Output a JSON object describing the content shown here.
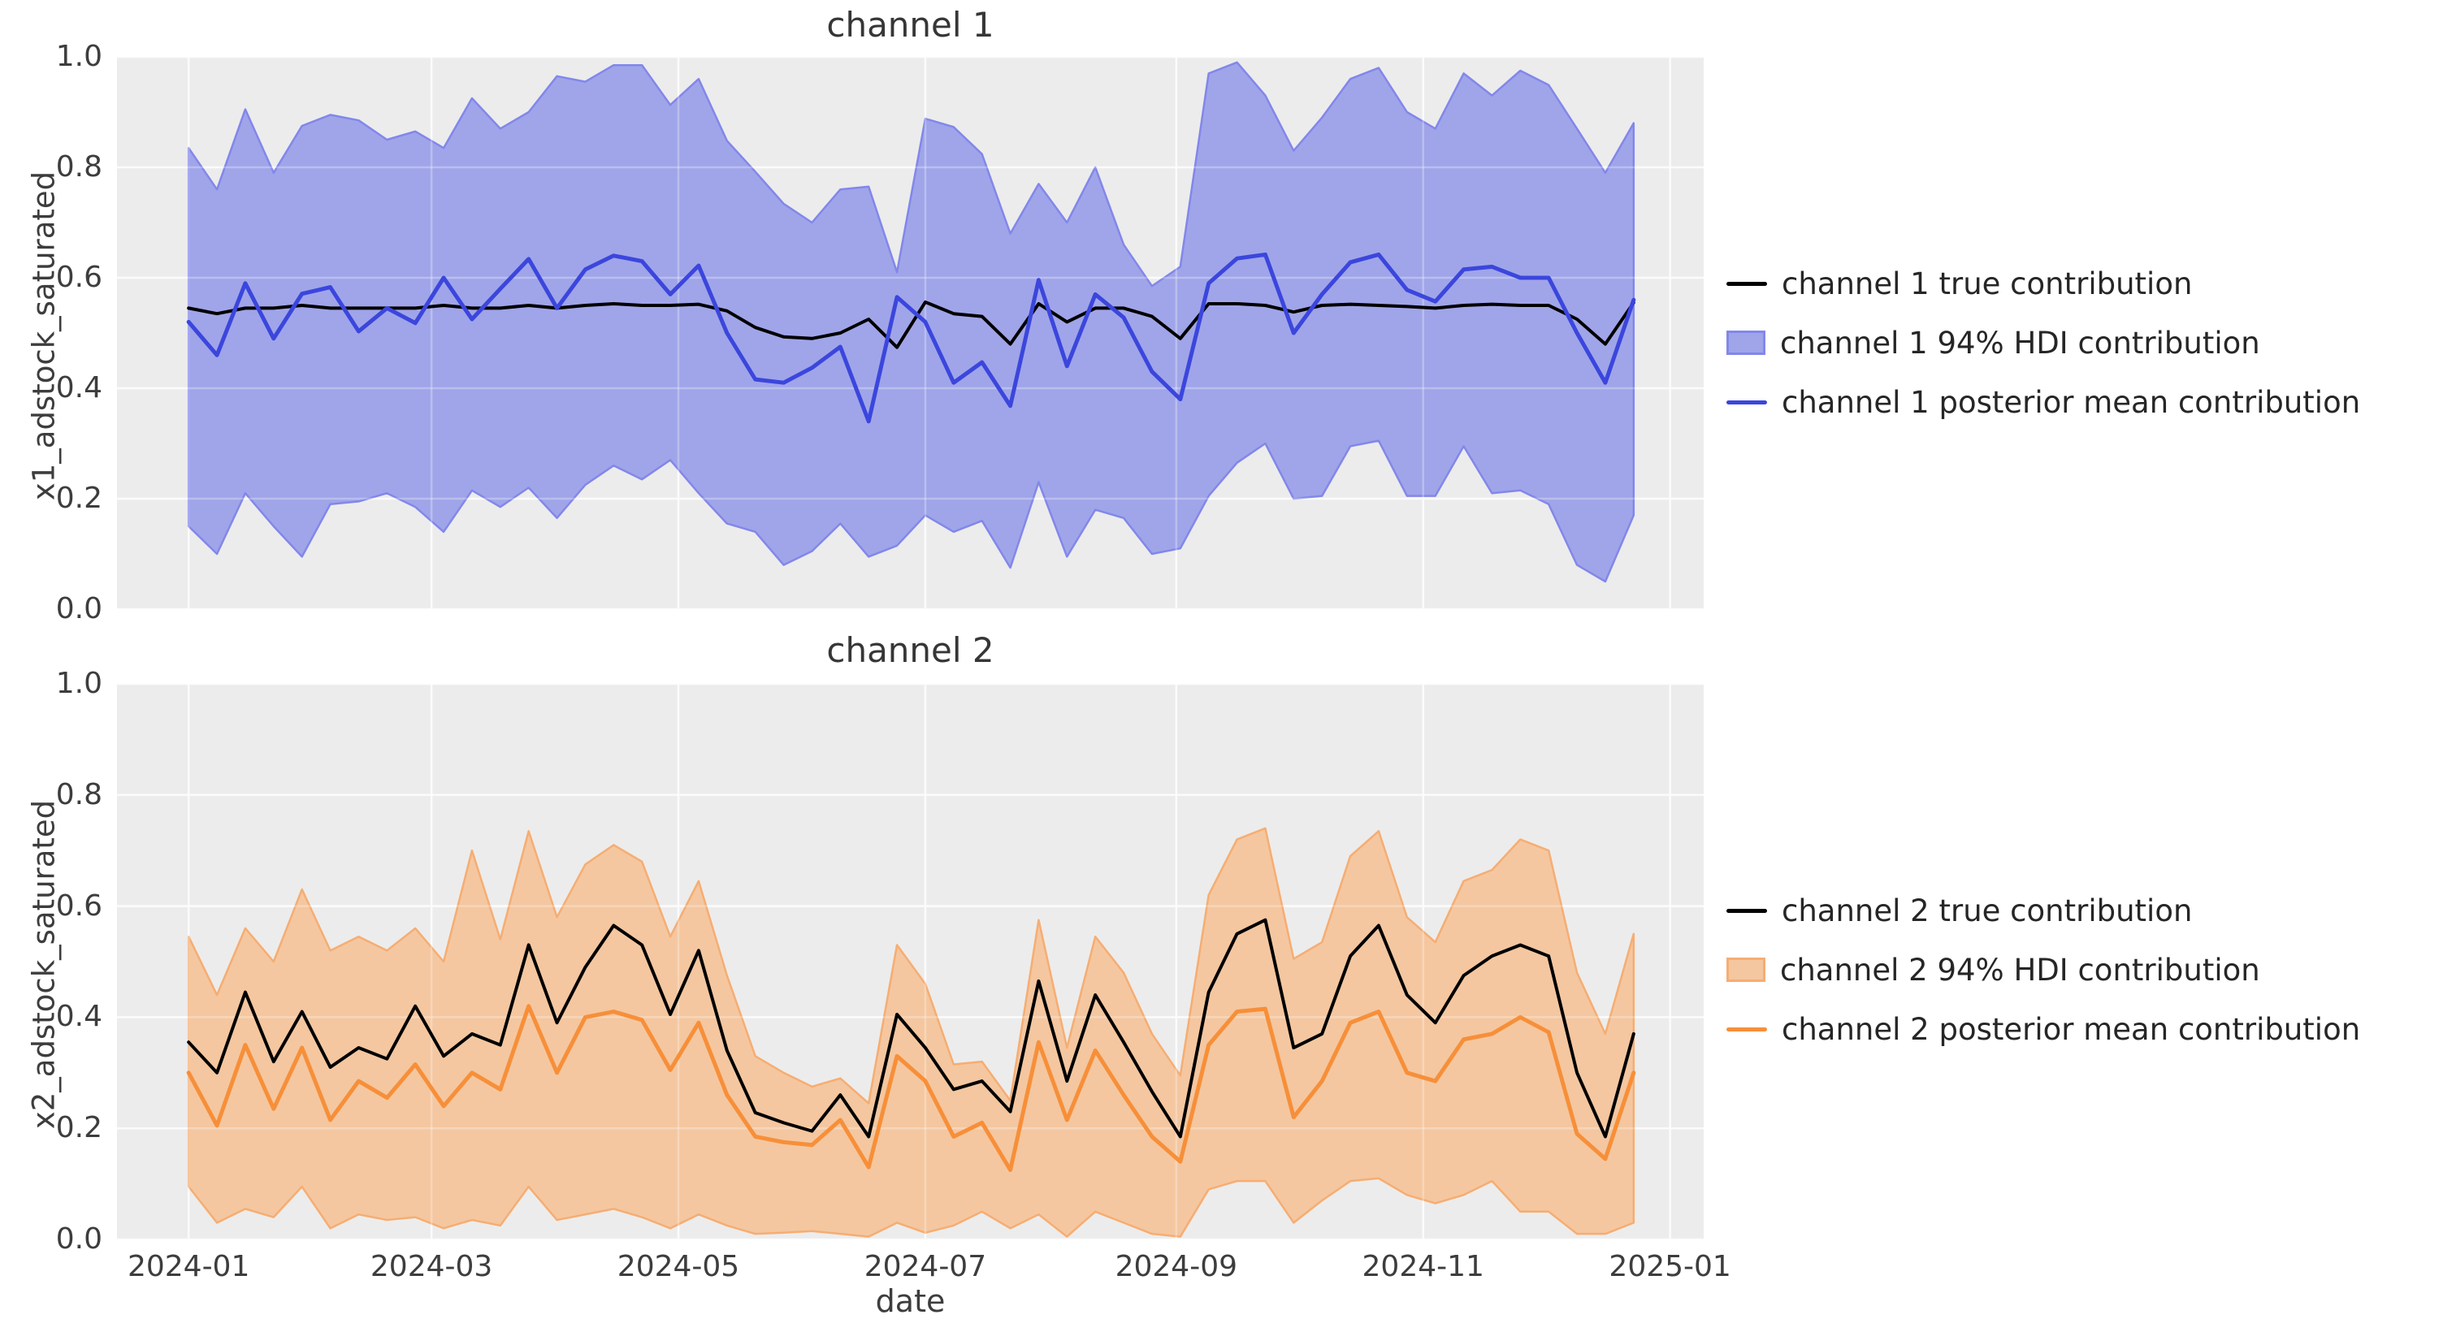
{
  "figure": {
    "background": "#ffffff",
    "panel_background": "#ececec",
    "grid_color": "#fafafa",
    "tick_text_color": "#3d3d3d",
    "title_text_color": "#363636"
  },
  "chart_data": [
    {
      "type": "line",
      "title": "channel 1",
      "ylabel": "x1_adstock_saturated",
      "xlabel": "",
      "ylim": [
        0.0,
        1.0
      ],
      "xlim_days": [
        -17.7,
        374.3
      ],
      "grid": true,
      "legend_position": "center right outside",
      "yticks": [
        {
          "label": "0.0",
          "value": 0.0
        },
        {
          "label": "0.2",
          "value": 0.2
        },
        {
          "label": "0.4",
          "value": 0.4
        },
        {
          "label": "0.6",
          "value": 0.6
        },
        {
          "label": "0.8",
          "value": 0.8
        },
        {
          "label": "1.0",
          "value": 1.0
        }
      ],
      "xticks": [
        {
          "label": "2024-01",
          "day": 0
        },
        {
          "label": "2024-03",
          "day": 60
        },
        {
          "label": "2024-05",
          "day": 121
        },
        {
          "label": "2024-07",
          "day": 182
        },
        {
          "label": "2024-09",
          "day": 244
        },
        {
          "label": "2024-11",
          "day": 305
        },
        {
          "label": "2025-01",
          "day": 366
        }
      ],
      "x_dates": [
        "2024-01-01",
        "2024-01-08",
        "2024-01-15",
        "2024-01-22",
        "2024-01-29",
        "2024-02-05",
        "2024-02-12",
        "2024-02-19",
        "2024-02-26",
        "2024-03-04",
        "2024-03-11",
        "2024-03-18",
        "2024-03-25",
        "2024-04-01",
        "2024-04-08",
        "2024-04-15",
        "2024-04-22",
        "2024-04-29",
        "2024-05-06",
        "2024-05-13",
        "2024-05-20",
        "2024-05-27",
        "2024-06-03",
        "2024-06-10",
        "2024-06-17",
        "2024-06-24",
        "2024-07-01",
        "2024-07-08",
        "2024-07-15",
        "2024-07-22",
        "2024-07-29",
        "2024-08-05",
        "2024-08-12",
        "2024-08-19",
        "2024-08-26",
        "2024-09-02",
        "2024-09-09",
        "2024-09-16",
        "2024-09-23",
        "2024-09-30",
        "2024-10-07",
        "2024-10-14",
        "2024-10-21",
        "2024-10-28",
        "2024-11-04",
        "2024-11-11",
        "2024-11-18",
        "2024-11-25",
        "2024-12-02",
        "2024-12-09",
        "2024-12-16",
        "2024-12-23"
      ],
      "series": [
        {
          "name": "channel 1 true contribution",
          "kind": "line",
          "color": "#000000",
          "width": 4,
          "values": [
            0.545,
            0.535,
            0.545,
            0.545,
            0.55,
            0.545,
            0.545,
            0.545,
            0.545,
            0.55,
            0.545,
            0.545,
            0.55,
            0.545,
            0.55,
            0.553,
            0.55,
            0.55,
            0.552,
            0.54,
            0.51,
            0.493,
            0.49,
            0.5,
            0.525,
            0.474,
            0.556,
            0.535,
            0.53,
            0.48,
            0.553,
            0.52,
            0.545,
            0.545,
            0.53,
            0.49,
            0.553,
            0.553,
            0.55,
            0.538,
            0.55,
            0.552,
            0.55,
            0.548,
            0.545,
            0.55,
            0.552,
            0.55,
            0.55,
            0.525,
            0.48,
            0.555
          ]
        },
        {
          "name": "channel 1 94% HDI contribution",
          "kind": "band",
          "fill": "#a0a5e9",
          "edge": "#8287ea",
          "upper": [
            0.835,
            0.76,
            0.905,
            0.79,
            0.875,
            0.895,
            0.885,
            0.85,
            0.865,
            0.835,
            0.925,
            0.87,
            0.9,
            0.965,
            0.955,
            0.985,
            0.985,
            0.913,
            0.96,
            0.848,
            0.792,
            0.734,
            0.7,
            0.76,
            0.765,
            0.61,
            0.888,
            0.873,
            0.824,
            0.68,
            0.77,
            0.7,
            0.8,
            0.66,
            0.585,
            0.62,
            0.97,
            0.99,
            0.93,
            0.83,
            0.89,
            0.96,
            0.98,
            0.9,
            0.87,
            0.97,
            0.93,
            0.975,
            0.949,
            0.87,
            0.79,
            0.88
          ],
          "lower": [
            0.15,
            0.1,
            0.21,
            0.15,
            0.095,
            0.19,
            0.195,
            0.21,
            0.185,
            0.14,
            0.215,
            0.185,
            0.22,
            0.165,
            0.225,
            0.26,
            0.235,
            0.27,
            0.21,
            0.155,
            0.14,
            0.08,
            0.105,
            0.155,
            0.095,
            0.115,
            0.17,
            0.14,
            0.16,
            0.075,
            0.23,
            0.095,
            0.18,
            0.165,
            0.1,
            0.11,
            0.205,
            0.265,
            0.3,
            0.2,
            0.205,
            0.295,
            0.305,
            0.205,
            0.205,
            0.295,
            0.21,
            0.215,
            0.19,
            0.08,
            0.05,
            0.17
          ]
        },
        {
          "name": "channel 1 posterior mean contribution",
          "kind": "line",
          "color": "#3b46dd",
          "width": 5,
          "values": [
            0.52,
            0.46,
            0.59,
            0.49,
            0.571,
            0.583,
            0.503,
            0.545,
            0.518,
            0.6,
            0.525,
            0.58,
            0.634,
            0.545,
            0.615,
            0.64,
            0.63,
            0.57,
            0.622,
            0.5,
            0.416,
            0.41,
            0.437,
            0.475,
            0.34,
            0.565,
            0.52,
            0.41,
            0.447,
            0.368,
            0.596,
            0.44,
            0.57,
            0.528,
            0.43,
            0.38,
            0.59,
            0.635,
            0.642,
            0.5,
            0.57,
            0.628,
            0.642,
            0.578,
            0.557,
            0.615,
            0.62,
            0.6,
            0.6,
            0.5,
            0.41,
            0.56
          ]
        }
      ]
    },
    {
      "type": "line",
      "title": "channel 2",
      "ylabel": "x2_adstock_saturated",
      "xlabel": "date",
      "ylim": [
        0.0,
        1.0
      ],
      "xlim_days": [
        -17.7,
        374.3
      ],
      "grid": true,
      "legend_position": "center right outside",
      "yticks": [
        {
          "label": "0.0",
          "value": 0.0
        },
        {
          "label": "0.2",
          "value": 0.2
        },
        {
          "label": "0.4",
          "value": 0.4
        },
        {
          "label": "0.6",
          "value": 0.6
        },
        {
          "label": "0.8",
          "value": 0.8
        },
        {
          "label": "1.0",
          "value": 1.0
        }
      ],
      "xticks": [
        {
          "label": "2024-01",
          "day": 0
        },
        {
          "label": "2024-03",
          "day": 60
        },
        {
          "label": "2024-05",
          "day": 121
        },
        {
          "label": "2024-07",
          "day": 182
        },
        {
          "label": "2024-09",
          "day": 244
        },
        {
          "label": "2024-11",
          "day": 305
        },
        {
          "label": "2025-01",
          "day": 366
        }
      ],
      "x_dates": [
        "2024-01-01",
        "2024-01-08",
        "2024-01-15",
        "2024-01-22",
        "2024-01-29",
        "2024-02-05",
        "2024-02-12",
        "2024-02-19",
        "2024-02-26",
        "2024-03-04",
        "2024-03-11",
        "2024-03-18",
        "2024-03-25",
        "2024-04-01",
        "2024-04-08",
        "2024-04-15",
        "2024-04-22",
        "2024-04-29",
        "2024-05-06",
        "2024-05-13",
        "2024-05-20",
        "2024-05-27",
        "2024-06-03",
        "2024-06-10",
        "2024-06-17",
        "2024-06-24",
        "2024-07-01",
        "2024-07-08",
        "2024-07-15",
        "2024-07-22",
        "2024-07-29",
        "2024-08-05",
        "2024-08-12",
        "2024-08-19",
        "2024-08-26",
        "2024-09-02",
        "2024-09-09",
        "2024-09-16",
        "2024-09-23",
        "2024-09-30",
        "2024-10-07",
        "2024-10-14",
        "2024-10-21",
        "2024-10-28",
        "2024-11-04",
        "2024-11-11",
        "2024-11-18",
        "2024-11-25",
        "2024-12-02",
        "2024-12-09",
        "2024-12-16",
        "2024-12-23"
      ],
      "series": [
        {
          "name": "channel 2 true contribution",
          "kind": "line",
          "color": "#000000",
          "width": 4,
          "values": [
            0.355,
            0.3,
            0.445,
            0.32,
            0.41,
            0.31,
            0.345,
            0.325,
            0.42,
            0.33,
            0.37,
            0.35,
            0.53,
            0.39,
            0.49,
            0.565,
            0.53,
            0.405,
            0.52,
            0.34,
            0.228,
            0.21,
            0.195,
            0.26,
            0.185,
            0.405,
            0.345,
            0.27,
            0.285,
            0.23,
            0.465,
            0.285,
            0.44,
            0.355,
            0.266,
            0.185,
            0.445,
            0.55,
            0.575,
            0.345,
            0.37,
            0.51,
            0.565,
            0.44,
            0.39,
            0.475,
            0.51,
            0.53,
            0.51,
            0.3,
            0.185,
            0.37
          ]
        },
        {
          "name": "channel 2 94% HDI contribution",
          "kind": "band",
          "fill": "#f4c7a0",
          "edge": "#f6ad72",
          "upper": [
            0.545,
            0.44,
            0.56,
            0.5,
            0.63,
            0.52,
            0.545,
            0.52,
            0.56,
            0.5,
            0.7,
            0.54,
            0.735,
            0.58,
            0.675,
            0.71,
            0.68,
            0.545,
            0.645,
            0.475,
            0.33,
            0.3,
            0.275,
            0.29,
            0.245,
            0.53,
            0.46,
            0.315,
            0.32,
            0.25,
            0.575,
            0.345,
            0.545,
            0.48,
            0.37,
            0.295,
            0.62,
            0.72,
            0.74,
            0.505,
            0.535,
            0.69,
            0.735,
            0.58,
            0.535,
            0.645,
            0.665,
            0.72,
            0.7,
            0.48,
            0.37,
            0.55
          ],
          "lower": [
            0.095,
            0.03,
            0.055,
            0.04,
            0.095,
            0.02,
            0.045,
            0.035,
            0.04,
            0.02,
            0.035,
            0.025,
            0.095,
            0.035,
            0.045,
            0.055,
            0.04,
            0.02,
            0.045,
            0.025,
            0.01,
            0.012,
            0.015,
            0.01,
            0.005,
            0.03,
            0.012,
            0.025,
            0.05,
            0.02,
            0.045,
            0.005,
            0.05,
            0.03,
            0.01,
            0.005,
            0.09,
            0.105,
            0.105,
            0.03,
            0.07,
            0.105,
            0.11,
            0.08,
            0.065,
            0.08,
            0.105,
            0.05,
            0.05,
            0.01,
            0.01,
            0.03
          ]
        },
        {
          "name": "channel 2 posterior mean contribution",
          "kind": "line",
          "color": "#f78f39",
          "width": 5,
          "values": [
            0.3,
            0.205,
            0.35,
            0.235,
            0.345,
            0.215,
            0.285,
            0.255,
            0.315,
            0.24,
            0.3,
            0.27,
            0.42,
            0.3,
            0.4,
            0.41,
            0.395,
            0.305,
            0.39,
            0.26,
            0.185,
            0.175,
            0.17,
            0.215,
            0.13,
            0.33,
            0.285,
            0.185,
            0.21,
            0.125,
            0.355,
            0.215,
            0.34,
            0.26,
            0.185,
            0.14,
            0.35,
            0.41,
            0.415,
            0.22,
            0.285,
            0.39,
            0.41,
            0.3,
            0.285,
            0.36,
            0.37,
            0.4,
            0.373,
            0.19,
            0.145,
            0.3
          ]
        }
      ]
    }
  ]
}
